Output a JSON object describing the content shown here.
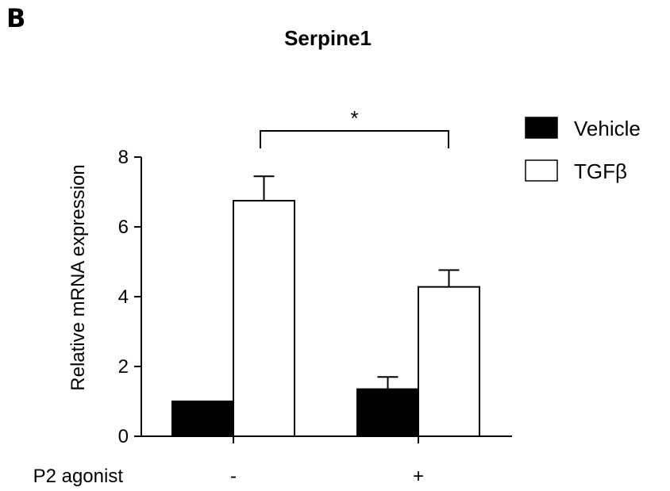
{
  "panel_label": "B",
  "chart_data": {
    "type": "bar",
    "title": "Serpine1",
    "ylabel": "Relative mRNA expression",
    "xlabel": "P2 agonist",
    "categories": [
      "-",
      "+"
    ],
    "ylim": [
      0,
      8
    ],
    "yticks": [
      0,
      2,
      4,
      6,
      8
    ],
    "series": [
      {
        "name": "Vehicle",
        "values": [
          1.0,
          1.35
        ],
        "errors": [
          0.0,
          0.35
        ],
        "fill": "#000000"
      },
      {
        "name": "TGFβ",
        "values": [
          6.75,
          4.28
        ],
        "errors": [
          0.7,
          0.48
        ],
        "fill": "#ffffff"
      }
    ],
    "significance": {
      "label": "*",
      "from_category": 0,
      "to_category": 1,
      "series": "TGFβ"
    },
    "legend_position": "top-right",
    "grid": false
  }
}
